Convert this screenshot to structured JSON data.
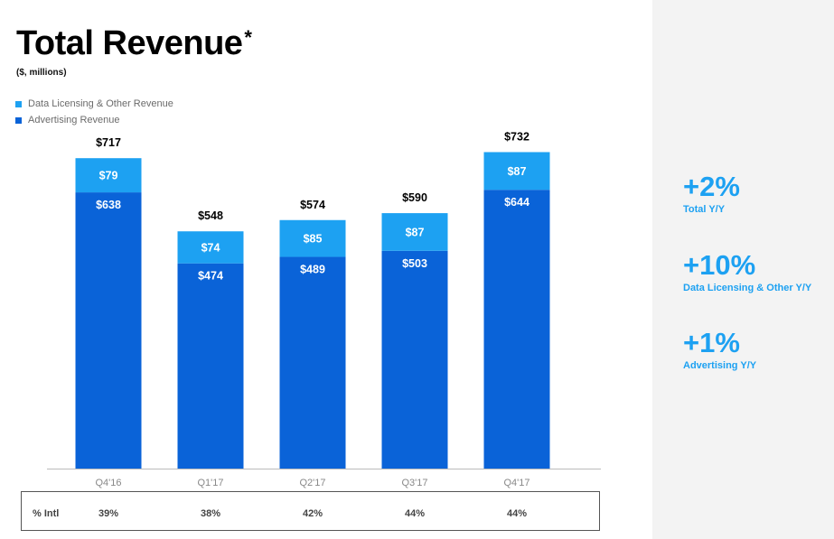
{
  "title": "Total Revenue",
  "title_mark": "*",
  "subtitle": "($, millions)",
  "colors": {
    "data_licensing": "#1da1f2",
    "advertising": "#0a63d8",
    "accent": "#1da1f2"
  },
  "legend": [
    {
      "label": "Data Licensing & Other Revenue",
      "color": "#1da1f2"
    },
    {
      "label": "Advertising Revenue",
      "color": "#0a63d8"
    }
  ],
  "chart_data": {
    "type": "bar",
    "stacked": true,
    "categories": [
      "Q4'16",
      "Q1'17",
      "Q2'17",
      "Q3'17",
      "Q4'17"
    ],
    "series": [
      {
        "name": "Advertising Revenue",
        "values": [
          638,
          474,
          489,
          503,
          644
        ],
        "labels": [
          "$638",
          "$474",
          "$489",
          "$503",
          "$644"
        ]
      },
      {
        "name": "Data Licensing & Other Revenue",
        "values": [
          79,
          74,
          85,
          87,
          87
        ],
        "labels": [
          "$79",
          "$74",
          "$85",
          "$87",
          "$87"
        ]
      }
    ],
    "totals": [
      717,
      548,
      574,
      590,
      732
    ],
    "total_labels": [
      "$717",
      "$548",
      "$574",
      "$590",
      "$732"
    ],
    "ylim": [
      0,
      732
    ],
    "grid": false
  },
  "intl": {
    "label": "% Intl",
    "values": [
      "39%",
      "38%",
      "42%",
      "44%",
      "44%"
    ]
  },
  "stats": [
    {
      "value": "+2%",
      "label": "Total Y/Y"
    },
    {
      "value": "+10%",
      "label": "Data Licensing & Other Y/Y"
    },
    {
      "value": "+1%",
      "label": "Advertising Y/Y"
    }
  ]
}
